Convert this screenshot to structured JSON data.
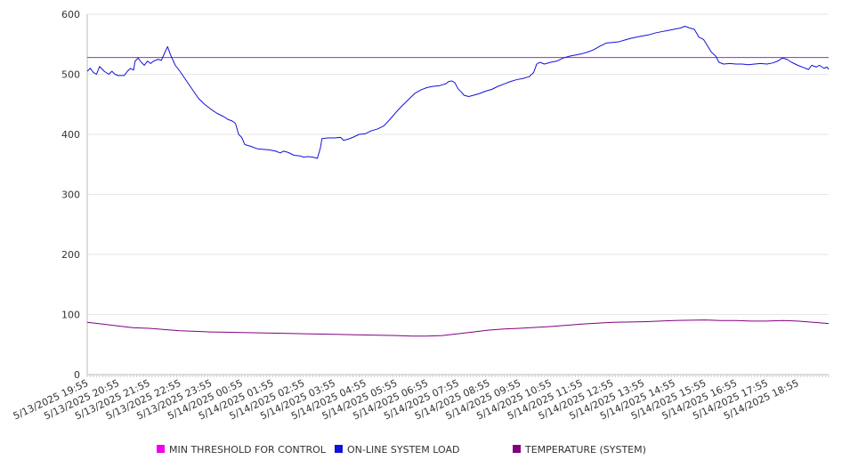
{
  "chart_data": {
    "type": "line",
    "title": "",
    "xlabel": "",
    "ylabel": "",
    "ylim": [
      0,
      600
    ],
    "yticks": [
      0,
      100,
      200,
      300,
      400,
      500,
      600
    ],
    "grid": "horizontal",
    "legend_position": "bottom",
    "x_tick_labels": [
      "5/13/2025 19:55",
      "5/13/2025 20:55",
      "5/13/2025 21:55",
      "5/13/2025 22:55",
      "5/13/2025 23:55",
      "5/14/2025 00:55",
      "5/14/2025 01:55",
      "5/14/2025 02:55",
      "5/14/2025 03:55",
      "5/14/2025 04:55",
      "5/14/2025 05:55",
      "5/14/2025 06:55",
      "5/14/2025 07:55",
      "5/14/2025 08:55",
      "5/14/2025 09:55",
      "5/14/2025 10:55",
      "5/14/2025 11:55",
      "5/14/2025 12:55",
      "5/14/2025 13:55",
      "5/14/2025 14:55",
      "5/14/2025 15:55",
      "5/14/2025 16:55",
      "5/14/2025 17:55",
      "5/14/2025 18:55"
    ],
    "x_hours": [
      0,
      24
    ],
    "series": [
      {
        "name": "MIN THRESHOLD FOR CONTROL",
        "color": "#ee00ee",
        "line_color": "#aa22cc",
        "points": [
          [
            0,
            528
          ],
          [
            24,
            528
          ]
        ]
      },
      {
        "name": "ON-LINE SYSTEM LOAD",
        "color": "#1111dd",
        "points": [
          [
            0,
            505
          ],
          [
            0.1,
            510
          ],
          [
            0.2,
            503
          ],
          [
            0.3,
            500
          ],
          [
            0.4,
            513
          ],
          [
            0.55,
            505
          ],
          [
            0.7,
            500
          ],
          [
            0.8,
            505
          ],
          [
            0.9,
            500
          ],
          [
            1.0,
            498
          ],
          [
            1.2,
            498
          ],
          [
            1.3,
            505
          ],
          [
            1.4,
            510
          ],
          [
            1.5,
            507
          ],
          [
            1.55,
            522
          ],
          [
            1.65,
            527
          ],
          [
            1.75,
            520
          ],
          [
            1.85,
            515
          ],
          [
            1.95,
            522
          ],
          [
            2.05,
            518
          ],
          [
            2.15,
            522
          ],
          [
            2.3,
            525
          ],
          [
            2.4,
            523
          ],
          [
            2.5,
            535
          ],
          [
            2.6,
            546
          ],
          [
            2.7,
            532
          ],
          [
            2.85,
            515
          ],
          [
            3.0,
            505
          ],
          [
            3.2,
            490
          ],
          [
            3.4,
            475
          ],
          [
            3.6,
            460
          ],
          [
            3.8,
            450
          ],
          [
            4.0,
            442
          ],
          [
            4.2,
            435
          ],
          [
            4.4,
            430
          ],
          [
            4.55,
            425
          ],
          [
            4.7,
            422
          ],
          [
            4.8,
            418
          ],
          [
            4.9,
            400
          ],
          [
            5.0,
            395
          ],
          [
            5.1,
            383
          ],
          [
            5.3,
            380
          ],
          [
            5.5,
            376
          ],
          [
            5.7,
            375
          ],
          [
            5.9,
            374
          ],
          [
            6.1,
            372
          ],
          [
            6.25,
            369
          ],
          [
            6.35,
            372
          ],
          [
            6.5,
            370
          ],
          [
            6.7,
            365
          ],
          [
            6.9,
            364
          ],
          [
            7.0,
            362
          ],
          [
            7.15,
            363
          ],
          [
            7.3,
            362
          ],
          [
            7.45,
            360
          ],
          [
            7.55,
            378
          ],
          [
            7.6,
            393
          ],
          [
            7.8,
            394
          ],
          [
            8.0,
            394
          ],
          [
            8.2,
            395
          ],
          [
            8.3,
            390
          ],
          [
            8.45,
            392
          ],
          [
            8.6,
            395
          ],
          [
            8.8,
            400
          ],
          [
            9.0,
            401
          ],
          [
            9.2,
            406
          ],
          [
            9.4,
            409
          ],
          [
            9.6,
            414
          ],
          [
            9.8,
            425
          ],
          [
            10.0,
            437
          ],
          [
            10.2,
            448
          ],
          [
            10.4,
            458
          ],
          [
            10.6,
            468
          ],
          [
            10.8,
            474
          ],
          [
            11.0,
            478
          ],
          [
            11.2,
            480
          ],
          [
            11.4,
            481
          ],
          [
            11.6,
            484
          ],
          [
            11.7,
            488
          ],
          [
            11.8,
            489
          ],
          [
            11.9,
            486
          ],
          [
            12.0,
            476
          ],
          [
            12.1,
            471
          ],
          [
            12.2,
            465
          ],
          [
            12.35,
            463
          ],
          [
            12.5,
            465
          ],
          [
            12.7,
            468
          ],
          [
            12.9,
            472
          ],
          [
            13.1,
            475
          ],
          [
            13.3,
            480
          ],
          [
            13.5,
            484
          ],
          [
            13.7,
            488
          ],
          [
            13.9,
            491
          ],
          [
            14.1,
            493
          ],
          [
            14.3,
            496
          ],
          [
            14.45,
            503
          ],
          [
            14.55,
            517
          ],
          [
            14.65,
            520
          ],
          [
            14.8,
            517
          ],
          [
            15.0,
            520
          ],
          [
            15.2,
            522
          ],
          [
            15.4,
            527
          ],
          [
            15.6,
            530
          ],
          [
            15.8,
            532
          ],
          [
            16.0,
            534
          ],
          [
            16.2,
            537
          ],
          [
            16.4,
            541
          ],
          [
            16.6,
            547
          ],
          [
            16.8,
            552
          ],
          [
            17.0,
            553
          ],
          [
            17.2,
            554
          ],
          [
            17.4,
            557
          ],
          [
            17.6,
            560
          ],
          [
            17.8,
            562
          ],
          [
            18.0,
            564
          ],
          [
            18.2,
            566
          ],
          [
            18.4,
            569
          ],
          [
            18.6,
            571
          ],
          [
            18.8,
            573
          ],
          [
            19.0,
            575
          ],
          [
            19.2,
            577
          ],
          [
            19.35,
            580
          ],
          [
            19.5,
            577
          ],
          [
            19.65,
            575
          ],
          [
            19.8,
            562
          ],
          [
            19.95,
            558
          ],
          [
            20.05,
            550
          ],
          [
            20.2,
            537
          ],
          [
            20.35,
            530
          ],
          [
            20.45,
            520
          ],
          [
            20.6,
            517
          ],
          [
            20.8,
            518
          ],
          [
            21.0,
            517
          ],
          [
            21.2,
            517
          ],
          [
            21.4,
            516
          ],
          [
            21.6,
            517
          ],
          [
            21.8,
            518
          ],
          [
            22.0,
            517
          ],
          [
            22.2,
            519
          ],
          [
            22.35,
            522
          ],
          [
            22.5,
            527
          ],
          [
            22.65,
            525
          ],
          [
            22.8,
            520
          ],
          [
            23.0,
            515
          ],
          [
            23.2,
            511
          ],
          [
            23.35,
            508
          ],
          [
            23.45,
            515
          ],
          [
            23.6,
            512
          ],
          [
            23.7,
            515
          ],
          [
            23.85,
            510
          ],
          [
            23.95,
            512
          ],
          [
            24.0,
            508
          ]
        ]
      },
      {
        "name": "TEMPERATURE (SYSTEM)",
        "color": "#800080",
        "points": [
          [
            0,
            87
          ],
          [
            0.5,
            84
          ],
          [
            1.0,
            81
          ],
          [
            1.5,
            78
          ],
          [
            2.0,
            77
          ],
          [
            2.5,
            75
          ],
          [
            3.0,
            73
          ],
          [
            3.5,
            72
          ],
          [
            4.0,
            71
          ],
          [
            5.0,
            70
          ],
          [
            6.0,
            69
          ],
          [
            7.0,
            68
          ],
          [
            8.0,
            67
          ],
          [
            9.0,
            66
          ],
          [
            10.0,
            65
          ],
          [
            10.5,
            64
          ],
          [
            11.0,
            64
          ],
          [
            11.5,
            65
          ],
          [
            12.0,
            68
          ],
          [
            12.5,
            71
          ],
          [
            13.0,
            74
          ],
          [
            13.5,
            76
          ],
          [
            14.0,
            77
          ],
          [
            15.0,
            80
          ],
          [
            16.0,
            84
          ],
          [
            17.0,
            87
          ],
          [
            18.0,
            88
          ],
          [
            19.0,
            90
          ],
          [
            20.0,
            91
          ],
          [
            20.5,
            90
          ],
          [
            21.0,
            90
          ],
          [
            21.5,
            89
          ],
          [
            22.0,
            89
          ],
          [
            22.5,
            90
          ],
          [
            23.0,
            89
          ],
          [
            23.5,
            87
          ],
          [
            24.0,
            85
          ]
        ]
      }
    ]
  }
}
